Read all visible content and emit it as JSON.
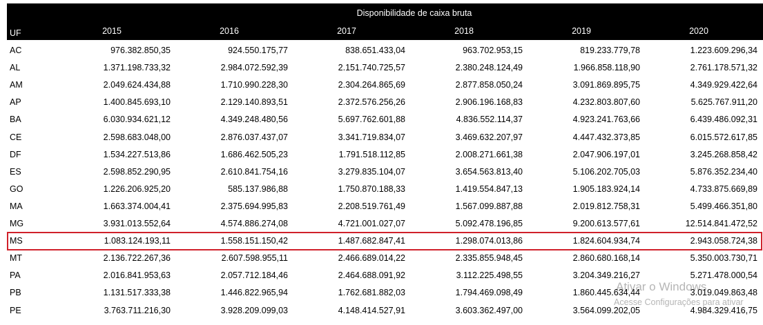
{
  "header": {
    "title": "Disponibilidade de caixa bruta",
    "uf_label": "UF",
    "years": [
      "2015",
      "2016",
      "2017",
      "2018",
      "2019",
      "2020"
    ]
  },
  "table": {
    "rows": [
      [
        "AC",
        "976.382.850,35",
        "924.550.175,77",
        "838.651.433,04",
        "963.702.953,15",
        "819.233.779,78",
        "1.223.609.296,34"
      ],
      [
        "AL",
        "1.371.198.733,32",
        "2.984.072.592,39",
        "2.151.740.725,57",
        "2.380.248.124,49",
        "1.966.858.118,90",
        "2.761.178.571,32"
      ],
      [
        "AM",
        "2.049.624.434,88",
        "1.710.990.228,30",
        "2.304.264.865,69",
        "2.877.858.050,24",
        "3.091.869.895,75",
        "4.349.929.422,64"
      ],
      [
        "AP",
        "1.400.845.693,10",
        "2.129.140.893,51",
        "2.372.576.256,26",
        "2.906.196.168,83",
        "4.232.803.807,60",
        "5.625.767.911,20"
      ],
      [
        "BA",
        "6.030.934.621,12",
        "4.349.248.480,56",
        "5.697.762.601,88",
        "4.836.552.114,37",
        "4.923.241.763,66",
        "6.439.486.092,31"
      ],
      [
        "CE",
        "2.598.683.048,00",
        "2.876.037.437,07",
        "3.341.719.834,07",
        "3.469.632.207,97",
        "4.447.432.373,85",
        "6.015.572.617,85"
      ],
      [
        "DF",
        "1.534.227.513,86",
        "1.686.462.505,23",
        "1.791.518.112,85",
        "2.008.271.661,38",
        "2.047.906.197,01",
        "3.245.268.858,42"
      ],
      [
        "ES",
        "2.598.852.290,95",
        "2.610.841.754,16",
        "3.279.835.104,07",
        "3.654.563.813,40",
        "5.106.202.705,03",
        "5.876.352.234,40"
      ],
      [
        "GO",
        "1.226.206.925,20",
        "585.137.986,88",
        "1.750.870.188,33",
        "1.419.554.847,13",
        "1.905.183.924,14",
        "4.733.875.669,89"
      ],
      [
        "MA",
        "1.663.374.004,41",
        "2.375.694.995,83",
        "2.208.519.761,49",
        "1.567.099.887,88",
        "2.019.812.758,31",
        "5.499.466.351,80"
      ],
      [
        "MG",
        "3.931.013.552,64",
        "4.574.886.274,08",
        "4.721.001.027,07",
        "5.092.478.196,85",
        "9.200.613.577,61",
        "12.514.841.472,52"
      ],
      [
        "MS",
        "1.083.124.193,11",
        "1.558.151.150,42",
        "1.487.682.847,41",
        "1.298.074.013,86",
        "1.824.604.934,74",
        "2.943.058.724,38"
      ],
      [
        "MT",
        "2.136.722.267,36",
        "2.607.598.955,11",
        "2.466.689.014,22",
        "2.335.855.948,45",
        "2.860.680.168,14",
        "5.350.003.730,71"
      ],
      [
        "PA",
        "2.016.841.953,63",
        "2.057.712.184,46",
        "2.464.688.091,92",
        "3.112.225.498,55",
        "3.204.349.216,27",
        "5.271.478.000,54"
      ],
      [
        "PB",
        "1.131.517.333,38",
        "1.446.822.965,94",
        "1.762.681.882,03",
        "1.794.469.098,49",
        "1.860.445.634,44",
        "3.019.049.863,48"
      ],
      [
        "PE",
        "3.763.711.216,30",
        "3.928.209.099,03",
        "4.148.414.527,91",
        "3.603.362.497,00",
        "3.564.099.202,05",
        "4.984.329.416,75"
      ]
    ]
  },
  "watermark": {
    "title": "Ativar o Windows",
    "text": "Acesse Configurações para ativar"
  }
}
